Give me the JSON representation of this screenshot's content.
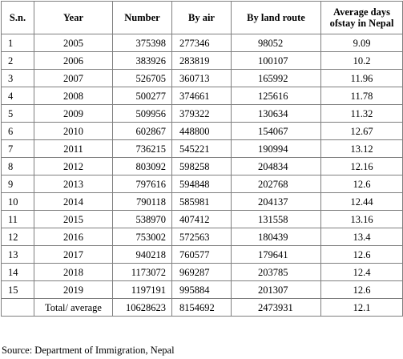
{
  "table": {
    "headers": [
      "S.n.",
      "Year",
      "Number",
      "By air",
      "By land route",
      "Average days ofstay in Nepal"
    ],
    "rows": [
      [
        "1",
        "2005",
        "375398",
        "277346",
        "98052",
        "9.09"
      ],
      [
        "2",
        "2006",
        "383926",
        "283819",
        "100107",
        "10.2"
      ],
      [
        "3",
        "2007",
        "526705",
        "360713",
        "165992",
        "11.96"
      ],
      [
        "4",
        "2008",
        "500277",
        "374661",
        "125616",
        "11.78"
      ],
      [
        "5",
        "2009",
        "509956",
        "379322",
        "130634",
        "11.32"
      ],
      [
        "6",
        "2010",
        "602867",
        "448800",
        "154067",
        "12.67"
      ],
      [
        "7",
        "2011",
        "736215",
        "545221",
        "190994",
        "13.12"
      ],
      [
        "8",
        "2012",
        "803092",
        "598258",
        "204834",
        "12.16"
      ],
      [
        "9",
        "2013",
        "797616",
        "594848",
        "202768",
        "12.6"
      ],
      [
        "10",
        "2014",
        "790118",
        "585981",
        "204137",
        "12.44"
      ],
      [
        "11",
        "2015",
        "538970",
        "407412",
        "131558",
        "13.16"
      ],
      [
        "12",
        "2016",
        "753002",
        "572563",
        "180439",
        "13.4"
      ],
      [
        "13",
        "2017",
        "940218",
        "760577",
        "179641",
        "12.6"
      ],
      [
        "14",
        "2018",
        "1173072",
        "969287",
        "203785",
        "12.4"
      ],
      [
        "15",
        "2019",
        "1197191",
        "995884",
        "201307",
        "12.6"
      ]
    ],
    "total": [
      "",
      "Total/ average",
      "10628623",
      "8154692",
      "2473931",
      "12.1"
    ]
  },
  "source": "Source: Department of Immigration, Nepal"
}
